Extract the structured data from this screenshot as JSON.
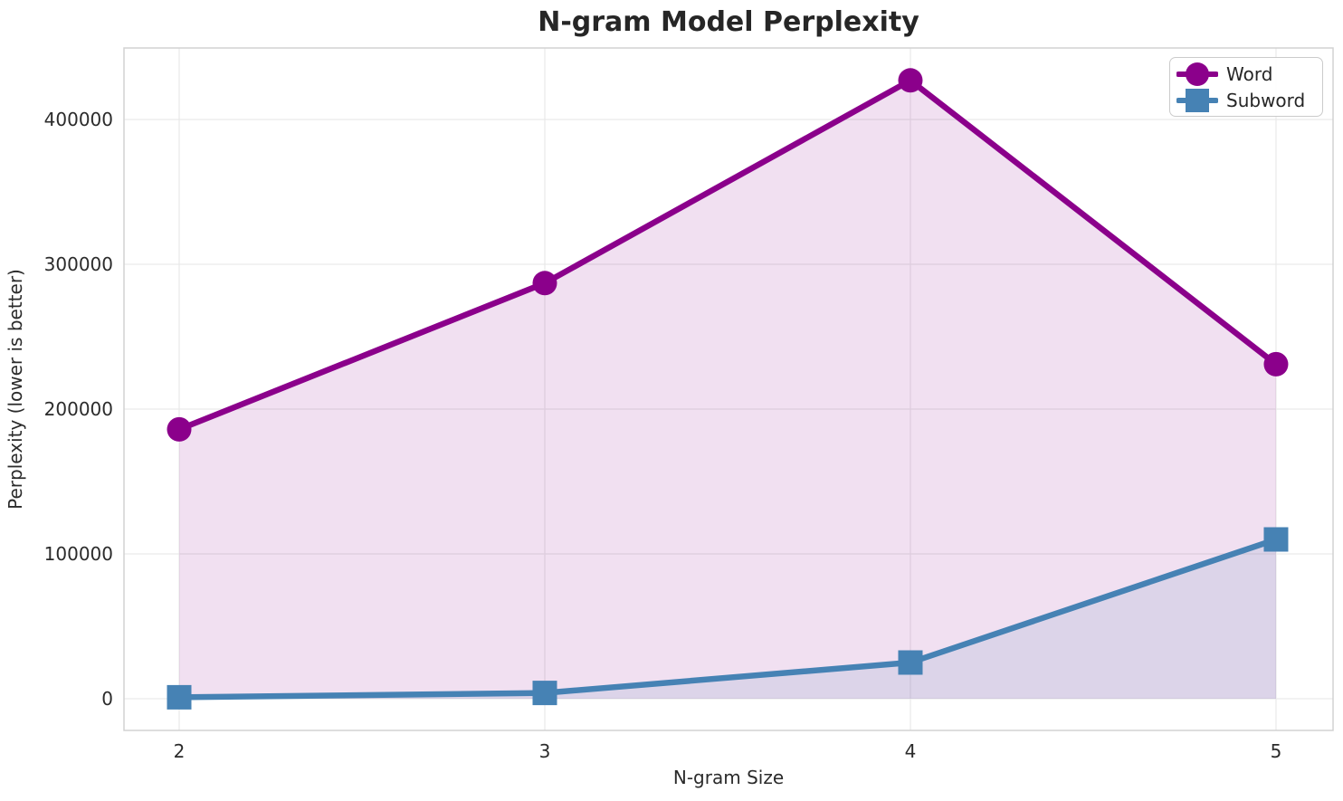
{
  "chart_data": {
    "type": "line",
    "title": "N-gram Model Perplexity",
    "xlabel": "N-gram Size",
    "ylabel": "Perplexity (lower is better)",
    "x": [
      2,
      3,
      4,
      5
    ],
    "series": [
      {
        "name": "Word",
        "values": [
          186000,
          287000,
          427000,
          231000
        ],
        "color": "#8B008B",
        "marker": "circle",
        "fill_to_zero": true
      },
      {
        "name": "Subword",
        "values": [
          1000,
          4000,
          25000,
          110000
        ],
        "color": "#4682B4",
        "marker": "square",
        "fill_to_zero": true
      }
    ],
    "fill_alpha": 0.12,
    "xticks": [
      2,
      3,
      4,
      5
    ],
    "xtick_labels": [
      "2",
      "3",
      "4",
      "5"
    ],
    "yticks": [
      0,
      100000,
      200000,
      300000,
      400000
    ],
    "ytick_labels": [
      "0",
      "100000",
      "200000",
      "300000",
      "400000"
    ],
    "xlim": [
      1.849,
      5.156
    ],
    "ylim": [
      -21875,
      449375
    ],
    "grid": true,
    "legend_position": "upper right",
    "grid_color": "#e9e9e9",
    "spine_color": "#d2d2d2",
    "text_color": "#262626",
    "background": "#ffffff"
  }
}
